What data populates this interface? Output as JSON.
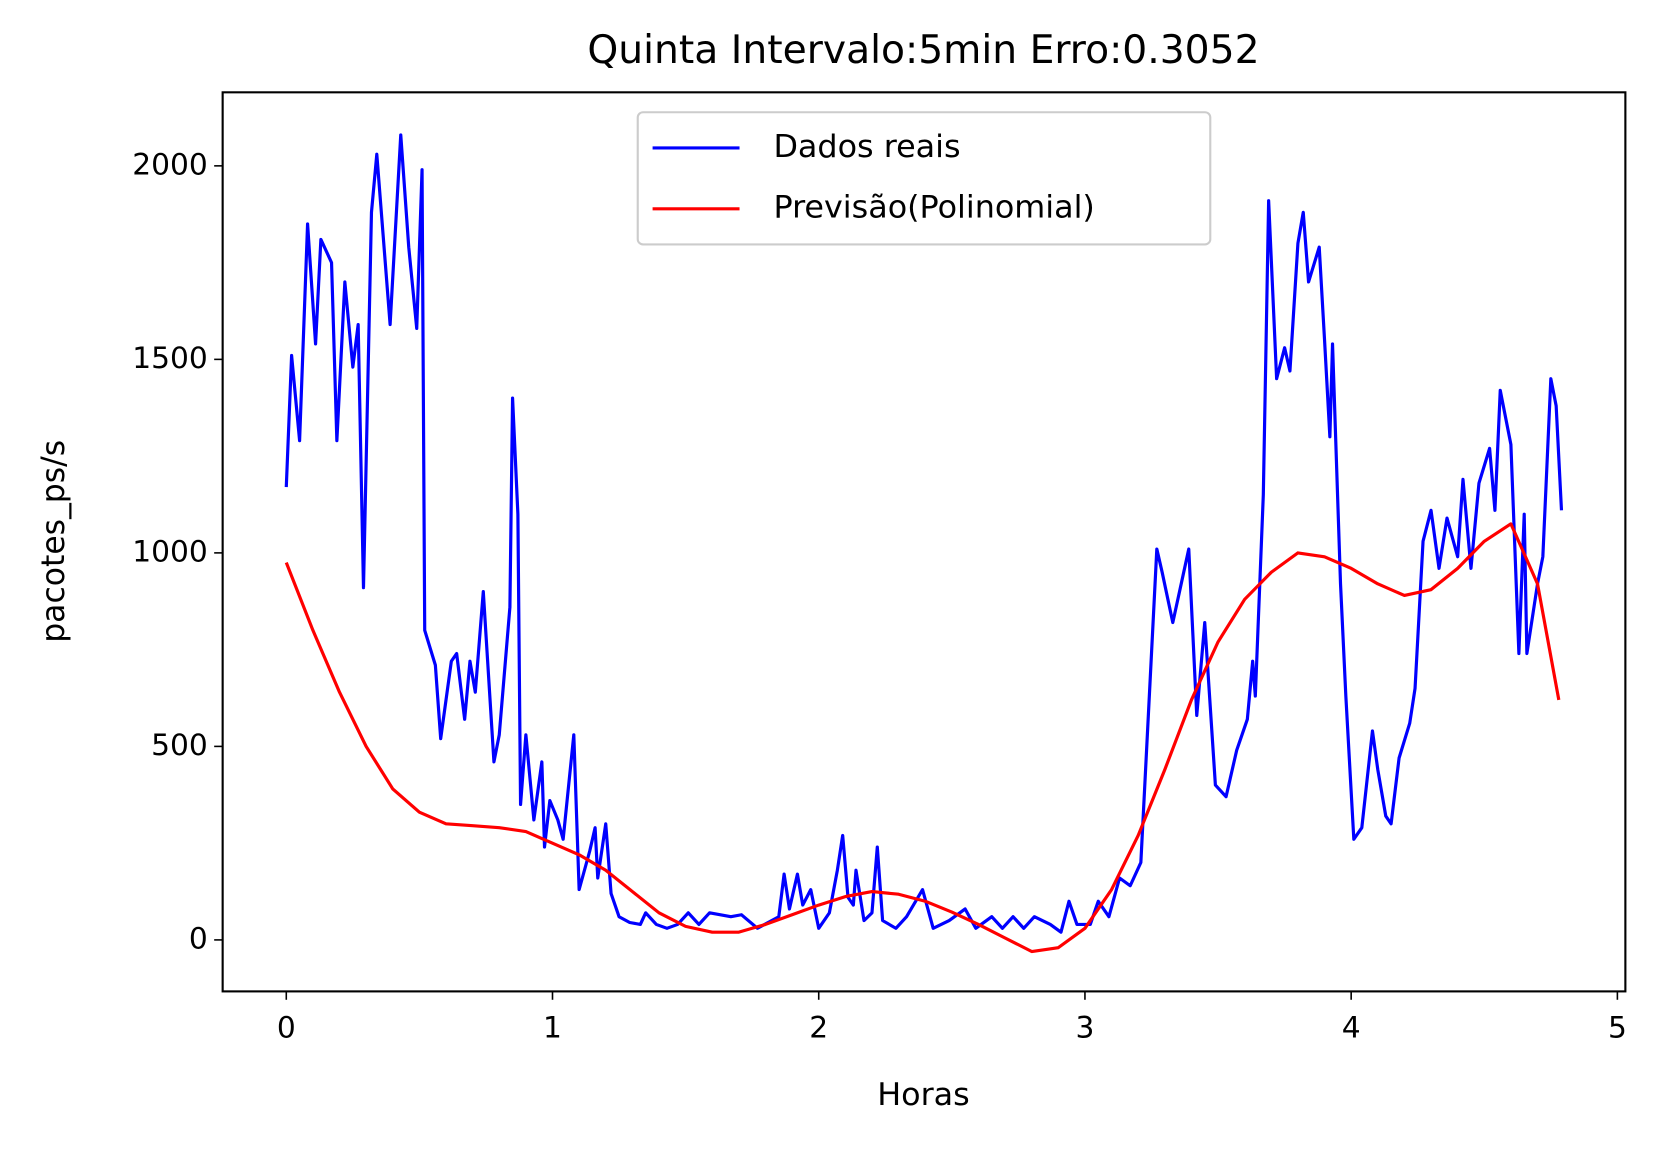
{
  "chart_data": {
    "type": "line",
    "title": "Quinta Intervalo:5min Erro:0.3052",
    "x_label": "Horas",
    "y_label": "pacotes_ps/s",
    "xlim": [
      -0.239,
      5.03
    ],
    "ylim": [
      -133,
      2190
    ],
    "xticks": [
      0,
      1,
      2,
      3,
      4,
      5
    ],
    "yticks": [
      0,
      500,
      1000,
      1500,
      2000
    ],
    "grid": false,
    "legend": "upper center",
    "series": [
      {
        "name": "Dados reais",
        "color": "#0000ff",
        "x": [
          0,
          0.02,
          0.05,
          0.08,
          0.11,
          0.13,
          0.17,
          0.19,
          0.22,
          0.25,
          0.27,
          0.29,
          0.32,
          0.34,
          0.39,
          0.43,
          0.46,
          0.49,
          0.51,
          0.52,
          0.56,
          0.58,
          0.62,
          0.64,
          0.67,
          0.69,
          0.71,
          0.74,
          0.78,
          0.8,
          0.84,
          0.85,
          0.87,
          0.88,
          0.9,
          0.93,
          0.96,
          0.97,
          0.99,
          1.02,
          1.04,
          1.08,
          1.1,
          1.14,
          1.16,
          1.17,
          1.2,
          1.22,
          1.25,
          1.29,
          1.33,
          1.35,
          1.39,
          1.43,
          1.47,
          1.51,
          1.55,
          1.59,
          1.67,
          1.71,
          1.77,
          1.85,
          1.87,
          1.89,
          1.92,
          1.94,
          1.97,
          2,
          2.04,
          2.07,
          2.09,
          2.11,
          2.13,
          2.14,
          2.17,
          2.2,
          2.22,
          2.24,
          2.29,
          2.33,
          2.39,
          2.43,
          2.49,
          2.55,
          2.59,
          2.65,
          2.69,
          2.73,
          2.77,
          2.81,
          2.87,
          2.91,
          2.94,
          2.97,
          3.02,
          3.05,
          3.09,
          3.13,
          3.17,
          3.21,
          3.23,
          3.27,
          3.29,
          3.33,
          3.39,
          3.42,
          3.45,
          3.49,
          3.53,
          3.57,
          3.61,
          3.63,
          3.64,
          3.67,
          3.69,
          3.72,
          3.75,
          3.77,
          3.8,
          3.82,
          3.84,
          3.88,
          3.9,
          3.92,
          3.93,
          3.96,
          3.98,
          4.01,
          4.04,
          4.08,
          4.1,
          4.13,
          4.15,
          4.18,
          4.22,
          4.24,
          4.27,
          4.3,
          4.33,
          4.36,
          4.4,
          4.42,
          4.45,
          4.48,
          4.52,
          4.54,
          4.56,
          4.6,
          4.63,
          4.65,
          4.66,
          4.7,
          4.72,
          4.75,
          4.77,
          4.79
        ],
        "values": [
          1170,
          1510,
          1290,
          1850,
          1540,
          1810,
          1750,
          1290,
          1700,
          1480,
          1590,
          910,
          1880,
          2030,
          1590,
          2080,
          1790,
          1580,
          1990,
          800,
          710,
          520,
          720,
          740,
          570,
          720,
          640,
          900,
          460,
          530,
          860,
          1400,
          1100,
          350,
          530,
          310,
          460,
          240,
          360,
          310,
          260,
          530,
          130,
          230,
          290,
          160,
          300,
          120,
          60,
          45,
          40,
          70,
          40,
          30,
          40,
          70,
          40,
          70,
          60,
          65,
          30,
          60,
          170,
          80,
          170,
          90,
          130,
          30,
          70,
          180,
          270,
          110,
          90,
          180,
          50,
          70,
          240,
          50,
          30,
          60,
          130,
          30,
          50,
          80,
          30,
          60,
          30,
          60,
          30,
          60,
          40,
          20,
          100,
          40,
          40,
          100,
          60,
          160,
          140,
          200,
          470,
          1010,
          950,
          820,
          1010,
          580,
          820,
          400,
          370,
          490,
          570,
          720,
          630,
          1150,
          1910,
          1450,
          1530,
          1470,
          1800,
          1880,
          1700,
          1790,
          1550,
          1300,
          1540,
          920,
          630,
          260,
          290,
          540,
          440,
          320,
          300,
          470,
          560,
          650,
          1030,
          1110,
          960,
          1090,
          990,
          1190,
          960,
          1180,
          1270,
          1110,
          1420,
          1280,
          740,
          1100,
          740,
          920,
          990,
          1450,
          1380,
          1110
        ]
      },
      {
        "name": "Previsão(Polinomial)",
        "color": "#ff0000",
        "x": [
          0,
          0.1,
          0.2,
          0.3,
          0.4,
          0.5,
          0.6,
          0.7,
          0.8,
          0.9,
          1,
          1.1,
          1.2,
          1.3,
          1.4,
          1.5,
          1.6,
          1.7,
          1.8,
          1.9,
          2,
          2.1,
          2.2,
          2.3,
          2.4,
          2.5,
          2.6,
          2.7,
          2.8,
          2.9,
          3,
          3.1,
          3.2,
          3.3,
          3.4,
          3.5,
          3.6,
          3.7,
          3.8,
          3.9,
          4,
          4.1,
          4.2,
          4.3,
          4.4,
          4.5,
          4.6,
          4.7,
          4.78
        ],
        "values": [
          975,
          800,
          640,
          500,
          390,
          330,
          300,
          295,
          290,
          280,
          250,
          220,
          180,
          125,
          70,
          35,
          20,
          20,
          40,
          65,
          90,
          112,
          125,
          118,
          100,
          72,
          40,
          5,
          -30,
          -20,
          30,
          130,
          270,
          440,
          620,
          770,
          880,
          950,
          1000,
          990,
          960,
          920,
          890,
          905,
          960,
          1030,
          1075,
          920,
          620
        ]
      }
    ]
  }
}
